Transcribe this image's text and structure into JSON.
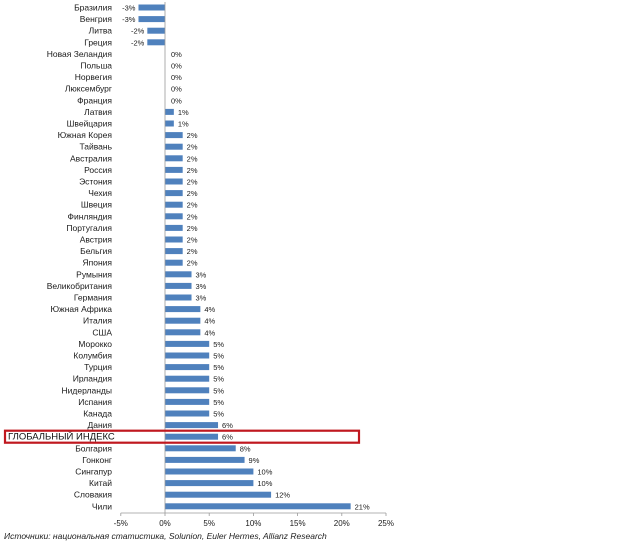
{
  "chart_data": {
    "type": "bar",
    "orientation": "horizontal",
    "categories": [
      "Бразилия",
      "Венгрия",
      "Литва",
      "Греция",
      "Новая Зеландия",
      "Польша",
      "Норвегия",
      "Люксембург",
      "Франция",
      "Латвия",
      "Швейцария",
      "Южная Корея",
      "Тайвань",
      "Австралия",
      "Россия",
      "Эстония",
      "Чехия",
      "Швеция",
      "Финляндия",
      "Португалия",
      "Австрия",
      "Бельгия",
      "Япония",
      "Румыния",
      "Великобритания",
      "Германия",
      "Южная Африка",
      "Италия",
      "США",
      "Морокко",
      "Колумбия",
      "Турция",
      "Ирландия",
      "Нидерланды",
      "Испания",
      "Канада",
      "Дания",
      "ГЛОБАЛЬНЫЙ ИНДЕКС",
      "Болгария",
      "Гонконг",
      "Сингапур",
      "Китай",
      "Словакия",
      "Чили"
    ],
    "values": [
      -3,
      -3,
      -2,
      -2,
      0,
      0,
      0,
      0,
      0,
      1,
      1,
      2,
      2,
      2,
      2,
      2,
      2,
      2,
      2,
      2,
      2,
      2,
      2,
      3,
      3,
      3,
      4,
      4,
      4,
      5,
      5,
      5,
      5,
      5,
      5,
      5,
      6,
      6,
      8,
      9,
      10,
      10,
      12,
      21
    ],
    "value_labels": [
      "-3%",
      "-3%",
      "-2%",
      "-2%",
      "0%",
      "0%",
      "0%",
      "0%",
      "0%",
      "1%",
      "1%",
      "2%",
      "2%",
      "2%",
      "2%",
      "2%",
      "2%",
      "2%",
      "2%",
      "2%",
      "2%",
      "2%",
      "2%",
      "3%",
      "3%",
      "3%",
      "4%",
      "4%",
      "4%",
      "5%",
      "5%",
      "5%",
      "5%",
      "5%",
      "5%",
      "5%",
      "6%",
      "6%",
      "8%",
      "9%",
      "10%",
      "10%",
      "12%",
      "21%"
    ],
    "highlighted_category": "ГЛОБАЛЬНЫЙ ИНДЕКС",
    "xlim": [
      -5,
      25
    ],
    "x_ticks": [
      -5,
      0,
      5,
      10,
      15,
      20,
      25
    ],
    "x_tick_labels": [
      "-5%",
      "0%",
      "5%",
      "10%",
      "15%",
      "20%",
      "25%"
    ],
    "bar_color": "#4f81bd",
    "highlight_color": "#c0181f",
    "grid": false,
    "legend": "none"
  },
  "source_note": "Источники: национальная статистика, Solunion, Euler Hermes, Allianz Research"
}
